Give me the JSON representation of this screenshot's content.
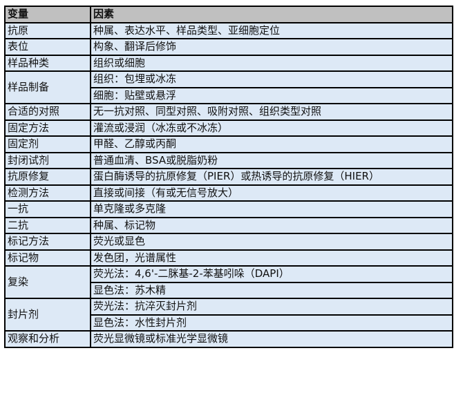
{
  "header": {
    "variable": "变量",
    "factor": "因素"
  },
  "rows": [
    {
      "variable": "抗原",
      "factors": [
        "种属、表达水平、样品类型、亚细胞定位"
      ]
    },
    {
      "variable": "表位",
      "factors": [
        "构象、翻译后修饰"
      ]
    },
    {
      "variable": "样品种类",
      "factors": [
        "组织或细胞"
      ]
    },
    {
      "variable": "样品制备",
      "factors": [
        "组织：包埋或冰冻",
        "细胞：贴壁或悬浮"
      ]
    },
    {
      "variable": "合适的对照",
      "factors": [
        "无一抗对照、同型对照、吸附对照、组织类型对照"
      ]
    },
    {
      "variable": "固定方法",
      "factors": [
        "灌流或浸润（冰冻或不冰冻）"
      ]
    },
    {
      "variable": "固定剂",
      "factors": [
        "甲醛、乙醇或丙酮"
      ]
    },
    {
      "variable": "封闭试剂",
      "factors": [
        "普通血清、BSA或脱脂奶粉"
      ]
    },
    {
      "variable": "抗原修复",
      "factors": [
        "蛋白酶诱导的抗原修复（PIER）或热诱导的抗原修复（HIER）"
      ]
    },
    {
      "variable": "检测方法",
      "factors": [
        "直接或间接（有或无信号放大）"
      ]
    },
    {
      "variable": "一抗",
      "factors": [
        "单克隆或多克隆"
      ]
    },
    {
      "variable": "二抗",
      "factors": [
        "种属、标记物"
      ]
    },
    {
      "variable": "标记方法",
      "factors": [
        "荧光或显色"
      ]
    },
    {
      "variable": "标记物",
      "factors": [
        "发色团，光谱属性"
      ]
    },
    {
      "variable": "复染",
      "factors": [
        "荧光法：4,6'-二脒基-2-苯基吲哚（DAPI）",
        "显色法：苏木精"
      ]
    },
    {
      "variable": "封片剂",
      "factors": [
        "荧光法：抗淬灭封片剂",
        "显色法：水性封片剂"
      ]
    },
    {
      "variable": "观察和分析",
      "factors": [
        "荧光显微镜或标准光学显微镜"
      ]
    }
  ],
  "colors": {
    "header_bg": "#c0c0c0",
    "cell_bg": "#dde9f6",
    "border": "#000000"
  }
}
